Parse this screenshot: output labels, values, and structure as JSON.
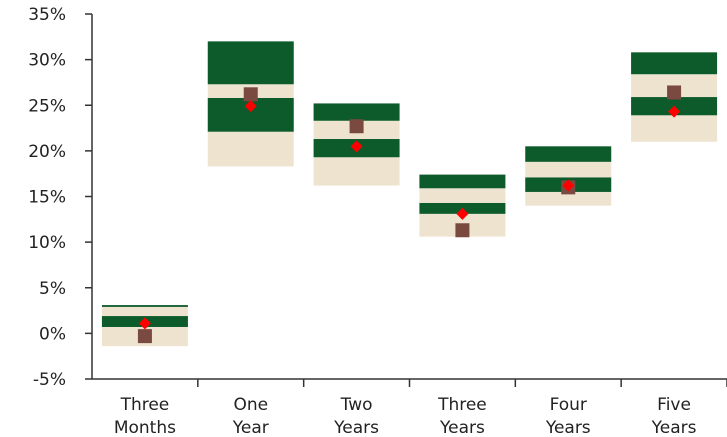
{
  "chart_data": {
    "type": "box",
    "title": "",
    "xlabel": "",
    "ylabel": "",
    "ylim": [
      -5,
      35
    ],
    "yticks": [
      -5,
      0,
      5,
      10,
      15,
      20,
      25,
      30,
      35
    ],
    "ytick_labels": [
      "-5%",
      "0%",
      "5%",
      "10%",
      "15%",
      "20%",
      "25%",
      "30%",
      "35%"
    ],
    "grid": false,
    "legend": "none",
    "categories": [
      {
        "line1": "Three",
        "line2": "Months"
      },
      {
        "line1": "One",
        "line2": "Year"
      },
      {
        "line1": "Two",
        "line2": "Years"
      },
      {
        "line1": "Three",
        "line2": "Years"
      },
      {
        "line1": "Four",
        "line2": "Years"
      },
      {
        "line1": "Five",
        "line2": "Years"
      }
    ],
    "bands": [
      {
        "min": -1.4,
        "p25": 0.7,
        "p40": 1.9,
        "p60": 2.9,
        "p75": 3.1,
        "max": 3.1
      },
      {
        "min": 18.3,
        "p25": 22.1,
        "p40": 25.8,
        "p60": 27.3,
        "p75": 32.0,
        "max": 32.0
      },
      {
        "min": 16.2,
        "p25": 19.3,
        "p40": 21.3,
        "p60": 23.3,
        "p75": 25.2,
        "max": 25.2
      },
      {
        "min": 10.6,
        "p25": 13.1,
        "p40": 14.3,
        "p60": 15.9,
        "p75": 17.4,
        "max": 17.4
      },
      {
        "min": 14.0,
        "p25": 15.5,
        "p40": 17.1,
        "p60": 18.8,
        "p75": 20.5,
        "max": 20.5
      },
      {
        "min": 21.0,
        "p25": 23.9,
        "p40": 25.9,
        "p60": 28.4,
        "p75": 30.8,
        "max": 30.8
      }
    ],
    "square_values": [
      -0.3,
      26.2,
      22.7,
      11.3,
      16.0,
      26.4
    ],
    "diamond_values": [
      1.1,
      24.9,
      20.5,
      13.1,
      16.2,
      24.3
    ],
    "colors": {
      "outer_band": "#ede3cf",
      "inner_band": "#0d5a2a",
      "square_marker": "#7a4a41",
      "diamond_marker": "#ff0000",
      "axis": "#333333"
    }
  }
}
